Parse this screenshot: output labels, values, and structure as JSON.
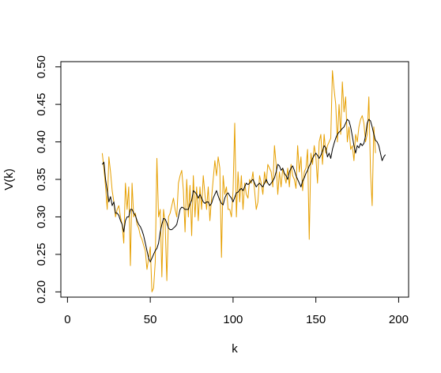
{
  "chart_data": {
    "type": "line",
    "title": "",
    "xlabel": "k",
    "ylabel": "V(k)",
    "xlim": [
      -4,
      206
    ],
    "ylim": [
      0.193,
      0.507
    ],
    "x_ticks": [
      "0",
      "50",
      "100",
      "150",
      "200"
    ],
    "y_ticks": [
      "0.20",
      "0.25",
      "0.30",
      "0.35",
      "0.40",
      "0.45",
      "0.50"
    ],
    "grid": false,
    "legend": "none",
    "x_start": 21,
    "series": [
      {
        "color": "#E69F00",
        "values": [
          0.385,
          0.365,
          0.34,
          0.31,
          0.38,
          0.36,
          0.335,
          0.32,
          0.3,
          0.31,
          0.315,
          0.3,
          0.29,
          0.265,
          0.345,
          0.31,
          0.34,
          0.235,
          0.345,
          0.3,
          0.305,
          0.29,
          0.285,
          0.275,
          0.27,
          0.262,
          0.255,
          0.23,
          0.245,
          0.26,
          0.2,
          0.205,
          0.24,
          0.378,
          0.3,
          0.31,
          0.22,
          0.31,
          0.29,
          0.215,
          0.3,
          0.305,
          0.315,
          0.325,
          0.31,
          0.3,
          0.345,
          0.355,
          0.362,
          0.335,
          0.28,
          0.35,
          0.3,
          0.342,
          0.275,
          0.355,
          0.3,
          0.34,
          0.295,
          0.34,
          0.31,
          0.355,
          0.33,
          0.31,
          0.34,
          0.295,
          0.325,
          0.35,
          0.375,
          0.355,
          0.38,
          0.365,
          0.246,
          0.355,
          0.33,
          0.34,
          0.31,
          0.31,
          0.3,
          0.335,
          0.425,
          0.3,
          0.36,
          0.32,
          0.355,
          0.31,
          0.345,
          0.33,
          0.325,
          0.35,
          0.345,
          0.36,
          0.335,
          0.31,
          0.32,
          0.355,
          0.345,
          0.33,
          0.36,
          0.345,
          0.37,
          0.365,
          0.36,
          0.34,
          0.395,
          0.37,
          0.33,
          0.36,
          0.34,
          0.365,
          0.355,
          0.345,
          0.365,
          0.34,
          0.37,
          0.355,
          0.35,
          0.338,
          0.395,
          0.36,
          0.38,
          0.335,
          0.36,
          0.365,
          0.39,
          0.27,
          0.385,
          0.37,
          0.395,
          0.38,
          0.345,
          0.4,
          0.41,
          0.37,
          0.41,
          0.385,
          0.395,
          0.4,
          0.405,
          0.495,
          0.47,
          0.45,
          0.4,
          0.45,
          0.41,
          0.48,
          0.44,
          0.46,
          0.4,
          0.42,
          0.39,
          0.395,
          0.375,
          0.41,
          0.4,
          0.42,
          0.43,
          0.435,
          0.425,
          0.4,
          0.41,
          0.46,
          0.36,
          0.315,
          0.42,
          0.385
        ]
      },
      {
        "color": "#000000",
        "values": [
          0.37,
          0.373,
          0.35,
          0.335,
          0.32,
          0.327,
          0.315,
          0.32,
          0.305,
          0.305,
          0.302,
          0.295,
          0.29,
          0.28,
          0.295,
          0.3,
          0.3,
          0.31,
          0.31,
          0.305,
          0.302,
          0.295,
          0.29,
          0.287,
          0.282,
          0.275,
          0.265,
          0.255,
          0.245,
          0.24,
          0.245,
          0.25,
          0.255,
          0.258,
          0.265,
          0.28,
          0.29,
          0.298,
          0.297,
          0.292,
          0.285,
          0.283,
          0.283,
          0.285,
          0.287,
          0.29,
          0.3,
          0.31,
          0.313,
          0.312,
          0.31,
          0.31,
          0.31,
          0.317,
          0.322,
          0.335,
          0.333,
          0.33,
          0.325,
          0.33,
          0.325,
          0.32,
          0.318,
          0.32,
          0.32,
          0.315,
          0.318,
          0.325,
          0.33,
          0.335,
          0.328,
          0.322,
          0.318,
          0.316,
          0.325,
          0.33,
          0.332,
          0.328,
          0.325,
          0.32,
          0.326,
          0.332,
          0.333,
          0.336,
          0.338,
          0.335,
          0.34,
          0.345,
          0.343,
          0.345,
          0.348,
          0.35,
          0.345,
          0.34,
          0.343,
          0.345,
          0.342,
          0.34,
          0.345,
          0.35,
          0.345,
          0.342,
          0.345,
          0.348,
          0.352,
          0.36,
          0.37,
          0.368,
          0.362,
          0.365,
          0.358,
          0.355,
          0.35,
          0.36,
          0.365,
          0.368,
          0.362,
          0.355,
          0.35,
          0.345,
          0.34,
          0.348,
          0.352,
          0.358,
          0.362,
          0.368,
          0.372,
          0.378,
          0.382,
          0.385,
          0.382,
          0.378,
          0.382,
          0.388,
          0.395,
          0.392,
          0.38,
          0.385,
          0.378,
          0.39,
          0.398,
          0.405,
          0.41,
          0.413,
          0.415,
          0.418,
          0.42,
          0.425,
          0.43,
          0.428,
          0.42,
          0.408,
          0.395,
          0.385,
          0.395,
          0.392,
          0.398,
          0.395,
          0.398,
          0.408,
          0.425,
          0.43,
          0.428,
          0.42,
          0.41,
          0.402,
          0.4,
          0.395,
          0.385,
          0.375,
          0.38,
          0.383
        ]
      }
    ]
  }
}
